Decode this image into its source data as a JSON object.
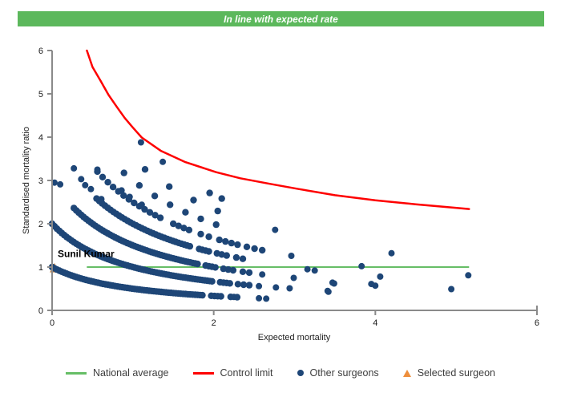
{
  "header": {
    "title": "In line with expected rate",
    "bg_color": "#5CB85C",
    "text_color": "#FFFFFF"
  },
  "chart_data": {
    "type": "scatter",
    "title": "",
    "xlabel": "Expected mortality",
    "ylabel": "Standardised mortality ratio",
    "xlim": [
      0,
      6
    ],
    "ylim": [
      0,
      6
    ],
    "xticks": [
      0,
      2,
      4,
      6
    ],
    "yticks": [
      0,
      1,
      2,
      3,
      4,
      5,
      6
    ],
    "grid": false,
    "colors": {
      "other_surgeons": "#1E4677",
      "control_limit": "#FE0000",
      "national_average": "#66BE66",
      "selected_surgeon": "#EE8E3B",
      "selected_surgeon_edge": "#C27A33",
      "axis": "#8A8A8A",
      "tick_text": "#1A1A1A"
    },
    "national_average": {
      "y": 1.0,
      "x_start": 0.43,
      "x_end": 5.16
    },
    "control_limit_points": [
      [
        0.43,
        6.0
      ],
      [
        0.5,
        5.62
      ],
      [
        0.6,
        5.3
      ],
      [
        0.7,
        4.97
      ],
      [
        0.8,
        4.7
      ],
      [
        0.9,
        4.44
      ],
      [
        1.0,
        4.22
      ],
      [
        1.11,
        3.99
      ],
      [
        1.35,
        3.68
      ],
      [
        1.64,
        3.43
      ],
      [
        2.03,
        3.19
      ],
      [
        2.33,
        3.05
      ],
      [
        2.7,
        2.92
      ],
      [
        3.03,
        2.81
      ],
      [
        3.5,
        2.66
      ],
      [
        4.0,
        2.54
      ],
      [
        4.5,
        2.45
      ],
      [
        5.16,
        2.34
      ]
    ],
    "other_surgeon_bands": {
      "formula": "smr = deaths / (1 + expected_mortality)",
      "bands": [
        {
          "deaths": 1,
          "segments": [
            [
              0.0,
              1.88,
              0.03
            ],
            [
              1.97,
              2.09,
              0.04
            ],
            [
              2.21,
              2.29,
              0.08
            ]
          ]
        },
        {
          "deaths": 2,
          "segments": [
            [
              0.0,
              2.0,
              0.03
            ],
            [
              2.08,
              2.2,
              0.04
            ],
            [
              2.3,
              2.44,
              0.07
            ]
          ]
        },
        {
          "deaths": 3,
          "segments": [
            [
              0.27,
              1.82,
              0.03
            ],
            [
              1.9,
              2.02,
              0.04
            ],
            [
              2.12,
              2.24,
              0.06
            ],
            [
              2.36,
              2.44,
              0.08
            ]
          ]
        },
        {
          "deaths": 4,
          "segments": [
            [
              0.55,
              1.72,
              0.035
            ],
            [
              1.82,
              1.94,
              0.04
            ],
            [
              2.04,
              2.16,
              0.06
            ],
            [
              2.28,
              2.36,
              0.08
            ]
          ]
        },
        {
          "deaths": 5,
          "segments": [
            [
              0.56,
              1.34,
              0.065
            ],
            [
              1.5,
              1.7,
              0.065
            ],
            [
              1.84,
              1.94,
              0.1
            ],
            [
              2.07,
              2.3,
              0.075
            ],
            [
              2.41,
              2.6,
              0.095
            ]
          ]
        },
        {
          "deaths": 6,
          "segments": [
            [
              0.89,
              2.03,
              0.19
            ]
          ]
        },
        {
          "deaths": 7,
          "segments": [
            [
              1.15,
              2.05,
              0.3
            ]
          ]
        },
        {
          "deaths": 8,
          "segments": [
            [
              1.95,
              2.1,
              0.15
            ]
          ]
        }
      ]
    },
    "other_surgeon_points": [
      [
        0.03,
        2.95
      ],
      [
        0.1,
        2.91
      ],
      [
        0.27,
        3.28
      ],
      [
        0.36,
        3.03
      ],
      [
        0.41,
        2.89
      ],
      [
        0.48,
        2.8
      ],
      [
        0.56,
        3.25
      ],
      [
        0.61,
        2.57
      ],
      [
        0.86,
        2.77
      ],
      [
        0.96,
        2.62
      ],
      [
        1.1,
        3.88
      ],
      [
        1.11,
        2.44
      ],
      [
        1.37,
        3.43
      ],
      [
        2.25,
        0.31
      ],
      [
        2.56,
        0.28
      ],
      [
        2.65,
        0.27
      ],
      [
        2.56,
        0.56
      ],
      [
        2.77,
        0.53
      ],
      [
        2.94,
        0.51
      ],
      [
        3.41,
        0.45
      ],
      [
        4.0,
        0.57
      ],
      [
        3.42,
        0.43
      ],
      [
        3.49,
        0.62
      ],
      [
        2.6,
        0.83
      ],
      [
        2.99,
        0.75
      ],
      [
        3.47,
        0.64
      ],
      [
        3.95,
        0.61
      ],
      [
        4.94,
        0.49
      ],
      [
        3.16,
        0.95
      ],
      [
        3.25,
        0.92
      ],
      [
        3.83,
        1.02
      ],
      [
        4.06,
        0.78
      ],
      [
        2.76,
        1.86
      ],
      [
        2.96,
        1.26
      ],
      [
        4.2,
        1.32
      ],
      [
        5.15,
        0.81
      ]
    ],
    "selected_surgeon": {
      "label": "Sunil Kumar",
      "x": 0.03,
      "y": 0.97
    }
  },
  "legend": {
    "items": [
      {
        "label": "National average",
        "type": "line",
        "color_key": "national_average"
      },
      {
        "label": "Control limit",
        "type": "line",
        "color_key": "control_limit"
      },
      {
        "label": "Other surgeons",
        "type": "dot",
        "color_key": "other_surgeons"
      },
      {
        "label": "Selected surgeon",
        "type": "triangle",
        "color_key": "selected_surgeon"
      }
    ]
  }
}
